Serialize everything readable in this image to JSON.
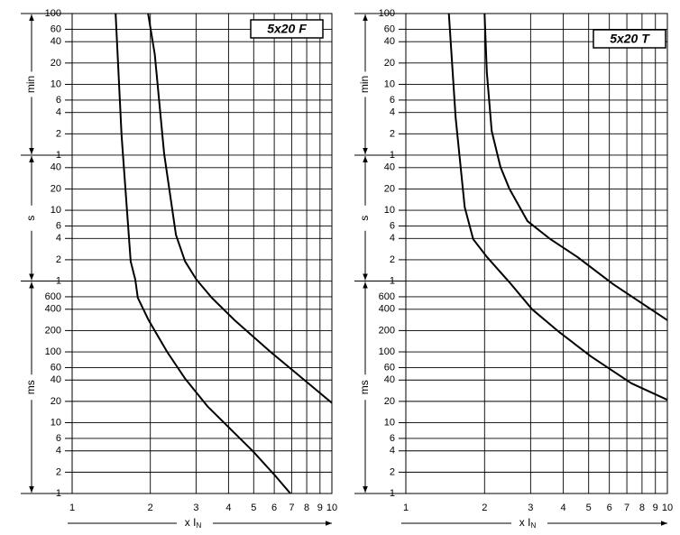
{
  "chart_data": [
    {
      "type": "line",
      "title": "5x20 F",
      "xlim": [
        1,
        10
      ],
      "xticks": [
        1,
        2,
        3,
        4,
        5,
        6,
        7,
        8,
        9,
        10
      ],
      "log_x": true,
      "ylim": [
        0.001,
        6000
      ],
      "log_y": true,
      "grid": true,
      "yticks": [
        {
          "value": 6000,
          "label": "100"
        },
        {
          "value": 3600,
          "label": "60"
        },
        {
          "value": 2400,
          "label": "40"
        },
        {
          "value": 1200,
          "label": "20"
        },
        {
          "value": 600,
          "label": "10"
        },
        {
          "value": 360,
          "label": "6"
        },
        {
          "value": 240,
          "label": "4"
        },
        {
          "value": 120,
          "label": "2"
        },
        {
          "value": 60,
          "label": "1"
        },
        40,
        20,
        10,
        6,
        4,
        2,
        1,
        {
          "value": 0.6,
          "label": "600"
        },
        {
          "value": 0.4,
          "label": "400"
        },
        {
          "value": 0.2,
          "label": "200"
        },
        {
          "value": 0.1,
          "label": "100"
        },
        {
          "value": 0.06,
          "label": "60"
        },
        {
          "value": 0.04,
          "label": "40"
        },
        {
          "value": 0.02,
          "label": "20"
        },
        {
          "value": 0.01,
          "label": "10"
        },
        {
          "value": 0.006,
          "label": "6"
        },
        {
          "value": 0.004,
          "label": "4"
        },
        {
          "value": 0.002,
          "label": "2"
        },
        {
          "value": 0.001,
          "label": "1"
        }
      ],
      "y_units": [
        {
          "label": "min",
          "range": [
            60,
            6000
          ]
        },
        {
          "label": "s",
          "range": [
            1,
            60
          ]
        },
        {
          "label": "ms",
          "range": [
            0.001,
            1
          ]
        }
      ],
      "xlabel": "x I",
      "xlabel_subscript": "N",
      "series": [
        {
          "color": "#000000",
          "x": [
            1.47,
            1.55,
            1.68,
            1.75,
            1.79,
            1.97,
            2.32,
            2.72,
            3.32,
            4.05,
            4.95,
            6.04,
            6.92
          ],
          "values": [
            6000,
            114,
            1.9,
            1.05,
            0.58,
            0.28,
            0.1,
            0.042,
            0.017,
            0.0083,
            0.004,
            0.0018,
            0.001
          ]
        },
        {
          "color": "#000000",
          "x": [
            1.96,
            2.08,
            2.26,
            2.51,
            2.72,
            3.01,
            3.45,
            4.22,
            5.8,
            7.38,
            10
          ],
          "values": [
            6000,
            1600,
            63,
            4.5,
            1.9,
            1.05,
            0.58,
            0.28,
            0.1,
            0.048,
            0.019
          ]
        }
      ]
    },
    {
      "type": "line",
      "title": "5x20 T",
      "xlim": [
        1,
        10
      ],
      "xticks": [
        1,
        2,
        3,
        4,
        5,
        6,
        7,
        8,
        9,
        10
      ],
      "log_x": true,
      "ylim": [
        0.001,
        6000
      ],
      "log_y": true,
      "grid": true,
      "yticks": [
        {
          "value": 6000,
          "label": "100"
        },
        {
          "value": 3600,
          "label": "60"
        },
        {
          "value": 2400,
          "label": "40"
        },
        {
          "value": 1200,
          "label": "20"
        },
        {
          "value": 600,
          "label": "10"
        },
        {
          "value": 360,
          "label": "6"
        },
        {
          "value": 240,
          "label": "4"
        },
        {
          "value": 120,
          "label": "2"
        },
        {
          "value": 60,
          "label": "1"
        },
        40,
        20,
        10,
        6,
        4,
        2,
        1,
        {
          "value": 0.6,
          "label": "600"
        },
        {
          "value": 0.4,
          "label": "400"
        },
        {
          "value": 0.2,
          "label": "200"
        },
        {
          "value": 0.1,
          "label": "100"
        },
        {
          "value": 0.06,
          "label": "60"
        },
        {
          "value": 0.04,
          "label": "40"
        },
        {
          "value": 0.02,
          "label": "20"
        },
        {
          "value": 0.01,
          "label": "10"
        },
        {
          "value": 0.006,
          "label": "6"
        },
        {
          "value": 0.004,
          "label": "4"
        },
        {
          "value": 0.002,
          "label": "2"
        },
        {
          "value": 0.001,
          "label": "1"
        }
      ],
      "y_units": [
        {
          "label": "min",
          "range": [
            60,
            6000
          ]
        },
        {
          "label": "s",
          "range": [
            1,
            60
          ]
        },
        {
          "label": "ms",
          "range": [
            0.001,
            1
          ]
        }
      ],
      "xlabel": "x I",
      "xlabel_subscript": "N",
      "series": [
        {
          "color": "#000000",
          "x": [
            1.46,
            1.55,
            1.68,
            1.81,
            2.04,
            2.49,
            3.04,
            3.86,
            5.09,
            7.28,
            10
          ],
          "values": [
            6000,
            205,
            11,
            3.9,
            2.2,
            0.96,
            0.4,
            0.19,
            0.087,
            0.036,
            0.021
          ]
        },
        {
          "color": "#000000",
          "x": [
            2.0,
            2.04,
            2.13,
            2.3,
            2.49,
            2.92,
            3.57,
            4.52,
            6.21,
            10
          ],
          "values": [
            6000,
            890,
            132,
            41,
            20,
            7,
            3.9,
            2.2,
            0.9,
            0.28
          ]
        }
      ]
    }
  ]
}
